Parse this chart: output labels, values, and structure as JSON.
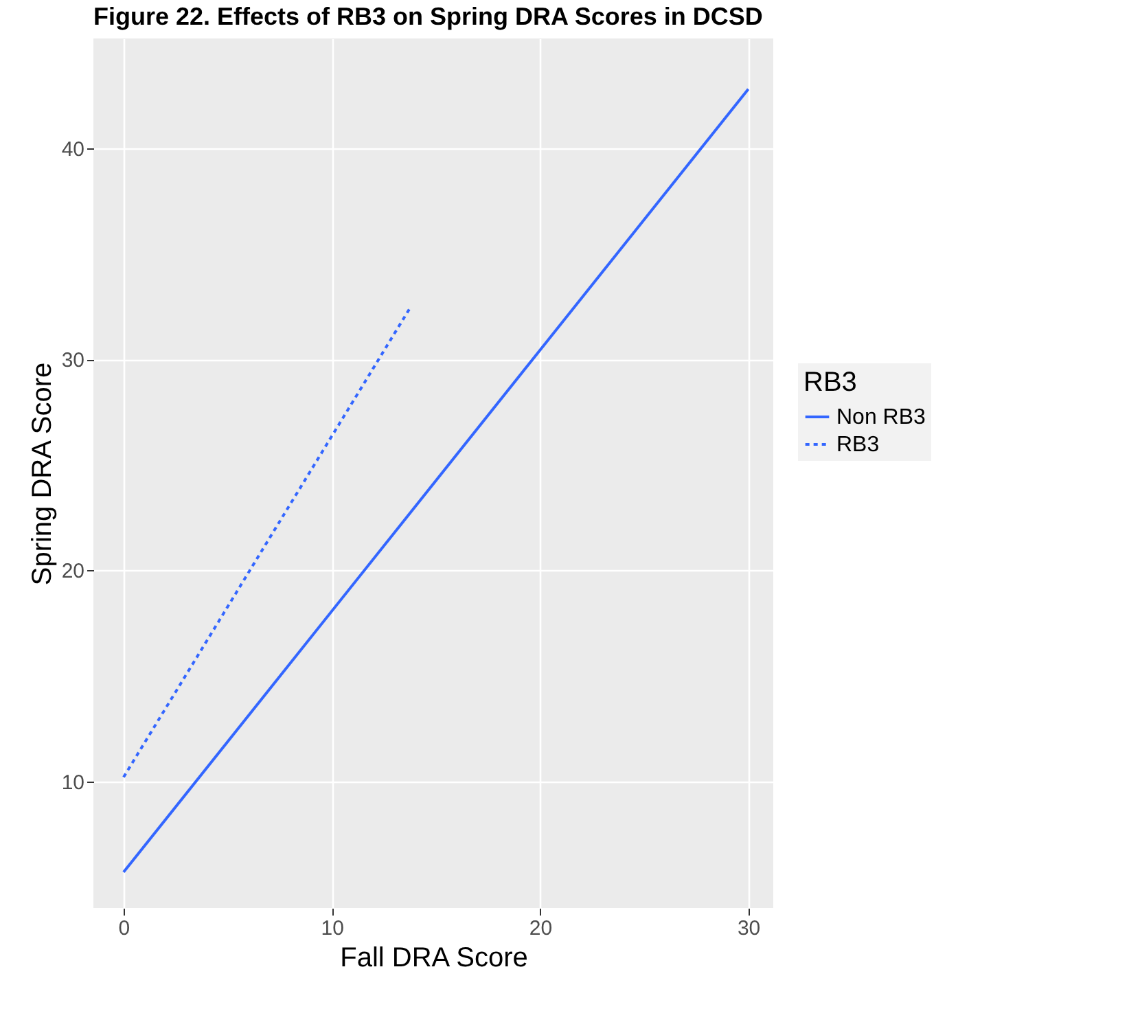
{
  "chart_data": {
    "type": "line",
    "title": "Figure 22. Effects of RB3 on Spring DRA Scores in DCSD",
    "xlabel": "Fall DRA Score",
    "ylabel": "Spring DRA Score",
    "legend_title": "RB3",
    "xlim": [
      -1.45,
      31.2
    ],
    "ylim": [
      4,
      45.2
    ],
    "xticks": [
      0,
      10,
      20,
      30
    ],
    "yticks": [
      10,
      20,
      30,
      40
    ],
    "grid": true,
    "legend": "right",
    "series": [
      {
        "name": "Non RB3",
        "color": "#3366ff",
        "line_style": "solid",
        "x": [
          0,
          30
        ],
        "values": [
          5.7,
          42.8
        ]
      },
      {
        "name": "RB3",
        "color": "#3366ff",
        "line_style": "dotted",
        "x": [
          0,
          13.8
        ],
        "values": [
          10.2,
          32.5
        ]
      }
    ]
  }
}
